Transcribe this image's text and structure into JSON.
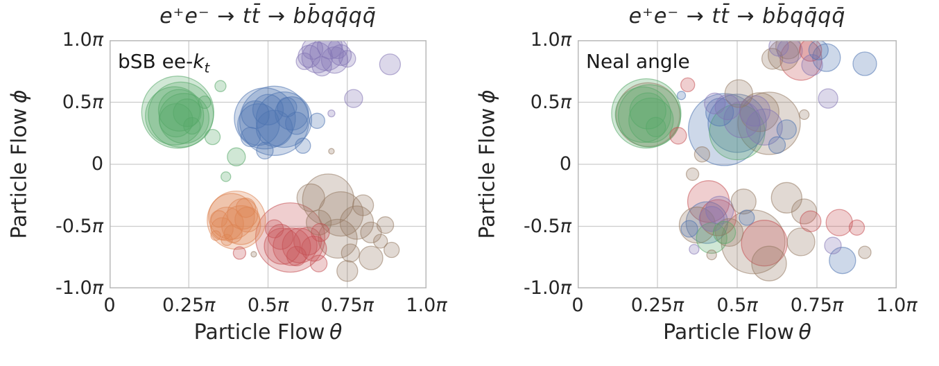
{
  "figure": {
    "background": "#ffffff",
    "grid_color": "#cccccc",
    "spine_color": "#b9b9b9",
    "text_color": "#262626",
    "bubble_fill_opacity": 0.28,
    "bubble_edge_opacity": 0.55
  },
  "colors": {
    "g": "#55A868",
    "b": "#4C72B0",
    "o": "#DD8452",
    "r": "#C44E52",
    "p": "#8172B3",
    "t": "#937860"
  },
  "chart_data": [
    {
      "type": "scatter",
      "title": "e⁺e⁻ → tt̄ → bb̄qq̄qq̄",
      "annotation": {
        "prefix": "bSB ee-",
        "var": "k",
        "sub": "t"
      },
      "xlabel": {
        "text": "Particle Flow",
        "symbol": "θ"
      },
      "ylabel": {
        "text": "Particle Flow",
        "symbol": "ϕ"
      },
      "xlim": [
        0,
        1
      ],
      "ylim": [
        -1,
        1
      ],
      "units": "multiples of π",
      "x_ticks": [
        {
          "v": 0,
          "label": "0"
        },
        {
          "v": 0.25,
          "label": "0.25π"
        },
        {
          "v": 0.5,
          "label": "0.5π"
        },
        {
          "v": 0.75,
          "label": "0.75π"
        },
        {
          "v": 1,
          "label": "1.0π"
        }
      ],
      "y_ticks": [
        {
          "v": 1,
          "label": "1.0π"
        },
        {
          "v": 0.5,
          "label": "0.5π"
        },
        {
          "v": 0,
          "label": "0"
        },
        {
          "v": -0.5,
          "label": "-0.5π"
        },
        {
          "v": -1,
          "label": "-1.0π"
        }
      ],
      "point_format": [
        "theta_pi",
        "phi_pi",
        "radius_px",
        "color_key"
      ],
      "points": [
        [
          0.215,
          0.42,
          52,
          "g"
        ],
        [
          0.225,
          0.4,
          47,
          "g"
        ],
        [
          0.205,
          0.39,
          42,
          "g"
        ],
        [
          0.235,
          0.37,
          36,
          "g"
        ],
        [
          0.22,
          0.435,
          30,
          "g"
        ],
        [
          0.21,
          0.355,
          24,
          "g"
        ],
        [
          0.245,
          0.415,
          20,
          "g"
        ],
        [
          0.26,
          0.31,
          12,
          "g"
        ],
        [
          0.35,
          0.63,
          8,
          "g"
        ],
        [
          0.325,
          0.22,
          11,
          "g"
        ],
        [
          0.4,
          0.06,
          13,
          "g"
        ],
        [
          0.367,
          -0.1,
          7,
          "g"
        ],
        [
          0.3,
          0.5,
          9,
          "g"
        ],
        [
          0.52,
          0.35,
          50,
          "b"
        ],
        [
          0.49,
          0.37,
          44,
          "b"
        ],
        [
          0.55,
          0.36,
          40,
          "b"
        ],
        [
          0.47,
          0.32,
          30,
          "b"
        ],
        [
          0.52,
          0.29,
          26,
          "b"
        ],
        [
          0.575,
          0.41,
          24,
          "b"
        ],
        [
          0.46,
          0.4,
          20,
          "b"
        ],
        [
          0.5,
          0.44,
          22,
          "b"
        ],
        [
          0.59,
          0.33,
          16,
          "b"
        ],
        [
          0.56,
          0.46,
          14,
          "b"
        ],
        [
          0.61,
          0.15,
          11,
          "b"
        ],
        [
          0.655,
          0.35,
          11,
          "b"
        ],
        [
          0.49,
          0.11,
          12,
          "b"
        ],
        [
          0.445,
          0.22,
          14,
          "b"
        ],
        [
          0.655,
          0.86,
          22,
          "p"
        ],
        [
          0.685,
          0.89,
          24,
          "p"
        ],
        [
          0.71,
          0.84,
          19,
          "p"
        ],
        [
          0.63,
          0.87,
          16,
          "p"
        ],
        [
          0.73,
          0.88,
          15,
          "p"
        ],
        [
          0.67,
          0.79,
          14,
          "p"
        ],
        [
          0.75,
          0.85,
          12,
          "p"
        ],
        [
          0.615,
          0.83,
          12,
          "p"
        ],
        [
          0.695,
          0.95,
          18,
          "p"
        ],
        [
          0.64,
          0.93,
          15,
          "p"
        ],
        [
          0.72,
          0.93,
          14,
          "p"
        ],
        [
          0.885,
          0.805,
          15,
          "p"
        ],
        [
          0.77,
          0.53,
          13,
          "p"
        ],
        [
          0.7,
          0.41,
          5,
          "p"
        ],
        [
          0.7,
          0.105,
          4,
          "t"
        ],
        [
          0.4,
          -0.45,
          42,
          "o"
        ],
        [
          0.385,
          -0.42,
          33,
          "o"
        ],
        [
          0.415,
          -0.49,
          28,
          "o"
        ],
        [
          0.37,
          -0.48,
          24,
          "o"
        ],
        [
          0.42,
          -0.4,
          22,
          "o"
        ],
        [
          0.355,
          -0.52,
          16,
          "o"
        ],
        [
          0.39,
          -0.56,
          13,
          "o"
        ],
        [
          0.435,
          -0.445,
          18,
          "o"
        ],
        [
          0.345,
          -0.44,
          12,
          "o"
        ],
        [
          0.37,
          -0.61,
          8,
          "o"
        ],
        [
          0.335,
          -0.575,
          7,
          "o"
        ],
        [
          0.43,
          -0.35,
          14,
          "o"
        ],
        [
          0.57,
          -0.59,
          50,
          "r"
        ],
        [
          0.545,
          -0.66,
          26,
          "r"
        ],
        [
          0.575,
          -0.665,
          27,
          "r"
        ],
        [
          0.6,
          -0.655,
          25,
          "r"
        ],
        [
          0.625,
          -0.62,
          20,
          "r"
        ],
        [
          0.54,
          -0.585,
          18,
          "r"
        ],
        [
          0.59,
          -0.74,
          14,
          "r"
        ],
        [
          0.645,
          -0.68,
          18,
          "r"
        ],
        [
          0.52,
          -0.52,
          13,
          "r"
        ],
        [
          0.41,
          -0.715,
          9,
          "r"
        ],
        [
          0.66,
          -0.8,
          12,
          "r"
        ],
        [
          0.665,
          -0.55,
          13,
          "r"
        ],
        [
          0.69,
          -0.285,
          37,
          "t"
        ],
        [
          0.73,
          -0.4,
          32,
          "t"
        ],
        [
          0.635,
          -0.27,
          20,
          "t"
        ],
        [
          0.78,
          -0.47,
          24,
          "t"
        ],
        [
          0.825,
          -0.55,
          15,
          "t"
        ],
        [
          0.87,
          -0.49,
          12,
          "t"
        ],
        [
          0.89,
          -0.69,
          11,
          "t"
        ],
        [
          0.825,
          -0.755,
          17,
          "t"
        ],
        [
          0.76,
          -0.715,
          13,
          "t"
        ],
        [
          0.75,
          -0.86,
          15,
          "t"
        ],
        [
          0.72,
          -0.6,
          28,
          "t"
        ],
        [
          0.66,
          -0.47,
          18,
          "t"
        ],
        [
          0.455,
          -0.725,
          4,
          "t"
        ],
        [
          0.8,
          -0.33,
          15,
          "t"
        ],
        [
          0.855,
          -0.62,
          10,
          "t"
        ]
      ]
    },
    {
      "type": "scatter",
      "title": "e⁺e⁻ → tt̄ → bb̄qq̄qq̄",
      "annotation": {
        "prefix": "Neal angle",
        "var": "",
        "sub": ""
      },
      "xlabel": {
        "text": "Particle Flow",
        "symbol": "θ"
      },
      "ylabel": {
        "text": "Particle Flow",
        "symbol": "ϕ"
      },
      "xlim": [
        0,
        1
      ],
      "ylim": [
        -1,
        1
      ],
      "units": "multiples of π",
      "x_ticks": [
        {
          "v": 0,
          "label": "0"
        },
        {
          "v": 0.25,
          "label": "0.25π"
        },
        {
          "v": 0.5,
          "label": "0.5π"
        },
        {
          "v": 0.75,
          "label": "0.75π"
        },
        {
          "v": 1,
          "label": "1.0π"
        }
      ],
      "y_ticks": [
        {
          "v": 1,
          "label": "1.0π"
        },
        {
          "v": 0.5,
          "label": "0.5π"
        },
        {
          "v": 0,
          "label": "0"
        },
        {
          "v": -0.5,
          "label": "-0.5π"
        },
        {
          "v": -1,
          "label": "-1.0π"
        }
      ],
      "point_format": [
        "theta_pi",
        "phi_pi",
        "radius_px",
        "color_key"
      ],
      "points": [
        [
          0.215,
          0.41,
          50,
          "g"
        ],
        [
          0.225,
          0.39,
          45,
          "g"
        ],
        [
          0.205,
          0.4,
          40,
          "g"
        ],
        [
          0.23,
          0.355,
          32,
          "g"
        ],
        [
          0.22,
          0.43,
          26,
          "g"
        ],
        [
          0.245,
          0.3,
          14,
          "g"
        ],
        [
          0.22,
          0.4,
          46,
          "t"
        ],
        [
          0.315,
          0.23,
          12,
          "r"
        ],
        [
          0.345,
          0.64,
          10,
          "r"
        ],
        [
          0.325,
          0.555,
          6,
          "b"
        ],
        [
          0.46,
          0.28,
          52,
          "b"
        ],
        [
          0.5,
          0.33,
          42,
          "b"
        ],
        [
          0.5,
          0.26,
          40,
          "g"
        ],
        [
          0.445,
          0.42,
          20,
          "b"
        ],
        [
          0.515,
          0.36,
          26,
          "p"
        ],
        [
          0.555,
          0.43,
          22,
          "p"
        ],
        [
          0.585,
          0.3,
          26,
          "p"
        ],
        [
          0.47,
          0.46,
          18,
          "p"
        ],
        [
          0.43,
          0.49,
          15,
          "p"
        ],
        [
          0.6,
          0.33,
          45,
          "t"
        ],
        [
          0.57,
          0.42,
          28,
          "t"
        ],
        [
          0.505,
          0.57,
          20,
          "t"
        ],
        [
          0.71,
          0.4,
          7,
          "t"
        ],
        [
          0.655,
          0.28,
          14,
          "b"
        ],
        [
          0.625,
          0.155,
          12,
          "b"
        ],
        [
          0.39,
          0.08,
          11,
          "t"
        ],
        [
          0.36,
          -0.08,
          9,
          "t"
        ],
        [
          0.645,
          0.88,
          22,
          "t"
        ],
        [
          0.61,
          0.85,
          15,
          "t"
        ],
        [
          0.66,
          0.95,
          18,
          "t"
        ],
        [
          0.7,
          0.845,
          30,
          "r"
        ],
        [
          0.73,
          0.92,
          16,
          "r"
        ],
        [
          0.665,
          0.915,
          18,
          "p"
        ],
        [
          0.735,
          0.8,
          15,
          "p"
        ],
        [
          0.63,
          0.95,
          14,
          "p"
        ],
        [
          0.78,
          0.86,
          20,
          "b"
        ],
        [
          0.755,
          0.92,
          14,
          "b"
        ],
        [
          0.9,
          0.81,
          17,
          "b"
        ],
        [
          0.785,
          0.53,
          14,
          "p"
        ],
        [
          0.41,
          -0.3,
          30,
          "r"
        ],
        [
          0.44,
          -0.43,
          26,
          "r"
        ],
        [
          0.445,
          -0.37,
          20,
          "p"
        ],
        [
          0.42,
          -0.44,
          18,
          "p"
        ],
        [
          0.405,
          -0.47,
          30,
          "b"
        ],
        [
          0.375,
          -0.49,
          26,
          "t"
        ],
        [
          0.42,
          -0.595,
          22,
          "g"
        ],
        [
          0.46,
          -0.55,
          16,
          "g"
        ],
        [
          0.35,
          -0.52,
          12,
          "b"
        ],
        [
          0.53,
          -0.43,
          11,
          "b"
        ],
        [
          0.365,
          -0.685,
          7,
          "p"
        ],
        [
          0.42,
          -0.73,
          7,
          "t"
        ],
        [
          0.475,
          -0.55,
          20,
          "t"
        ],
        [
          0.52,
          -0.3,
          18,
          "t"
        ],
        [
          0.55,
          -0.625,
          46,
          "t"
        ],
        [
          0.585,
          -0.635,
          33,
          "r"
        ],
        [
          0.6,
          -0.8,
          25,
          "t"
        ],
        [
          0.655,
          -0.27,
          22,
          "t"
        ],
        [
          0.71,
          -0.38,
          18,
          "t"
        ],
        [
          0.73,
          -0.46,
          15,
          "r"
        ],
        [
          0.7,
          -0.625,
          20,
          "t"
        ],
        [
          0.82,
          -0.47,
          19,
          "r"
        ],
        [
          0.875,
          -0.51,
          11,
          "r"
        ],
        [
          0.8,
          -0.655,
          12,
          "p"
        ],
        [
          0.83,
          -0.775,
          19,
          "b"
        ],
        [
          0.9,
          -0.71,
          9,
          "t"
        ]
      ]
    }
  ]
}
